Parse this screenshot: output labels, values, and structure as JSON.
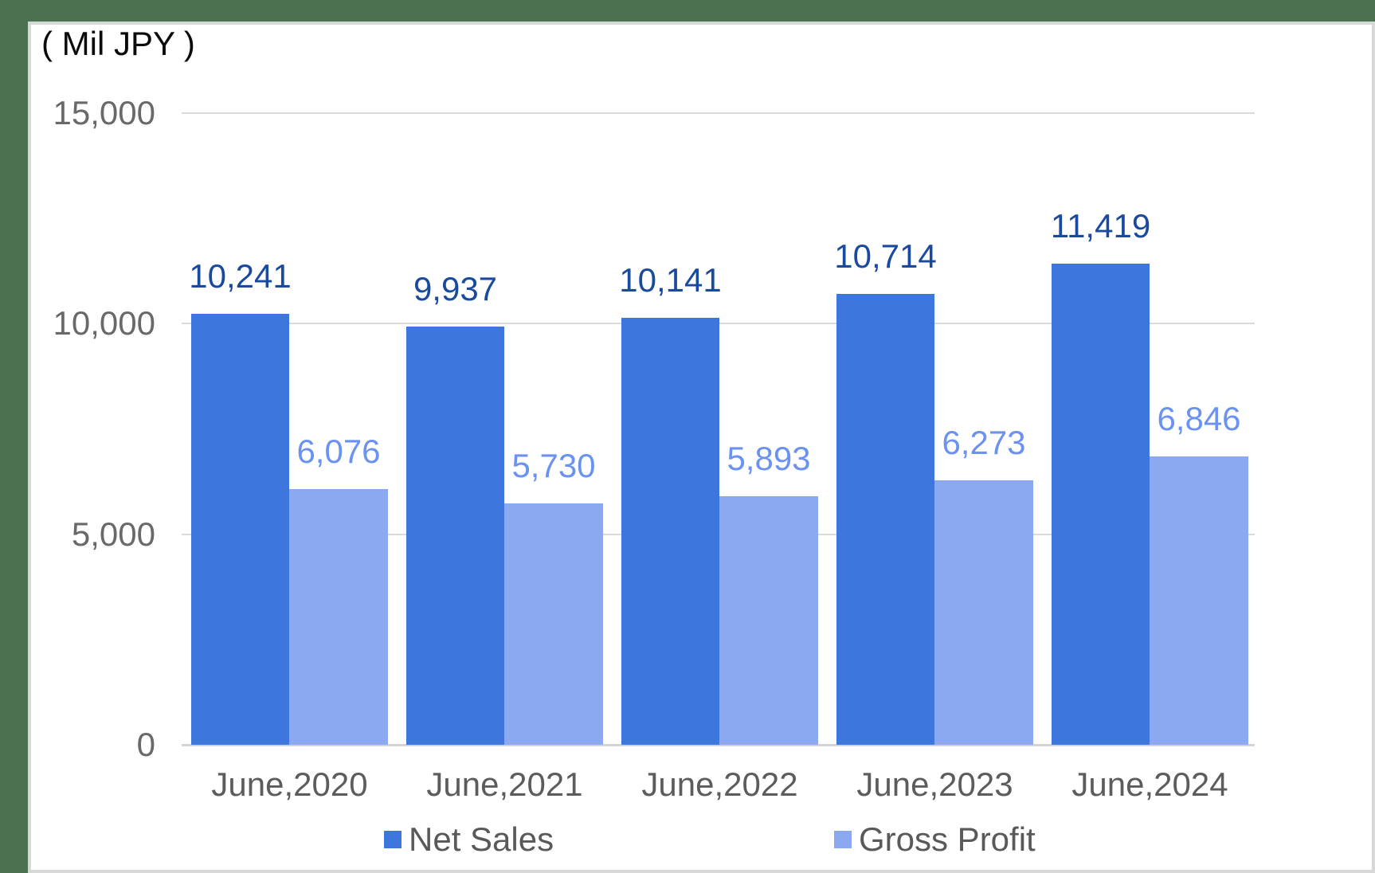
{
  "frame": {
    "background_color": "#4A7150",
    "card_background": "#FFFFFF",
    "card_border_color": "#D8D8D8"
  },
  "chart_data": {
    "type": "bar",
    "title": "( Mil JPY )",
    "categories": [
      "June,2020",
      "June,2021",
      "June,2022",
      "June,2023",
      "June,2024"
    ],
    "series": [
      {
        "name": "Net Sales",
        "color": "#3D76DC",
        "value_label_color": "#1A4A9E",
        "values": [
          10241,
          9937,
          10141,
          10714,
          11419
        ]
      },
      {
        "name": "Gross Profit",
        "color": "#8CA8F0",
        "value_label_color": "#6B92F0",
        "values": [
          6076,
          5730,
          5893,
          6273,
          6846
        ]
      }
    ],
    "ylim": [
      0,
      15000
    ],
    "yticks": [
      15000,
      10000,
      5000,
      0
    ],
    "grid": true,
    "gridline_color": "#DADADA",
    "axis_line_color": "#D4D4D4",
    "ytick_text_color": "#696969",
    "xtick_text_color": "#5C5C5C",
    "legend_text_color": "#595959",
    "legend_position": "bottom",
    "value_labels": true
  }
}
